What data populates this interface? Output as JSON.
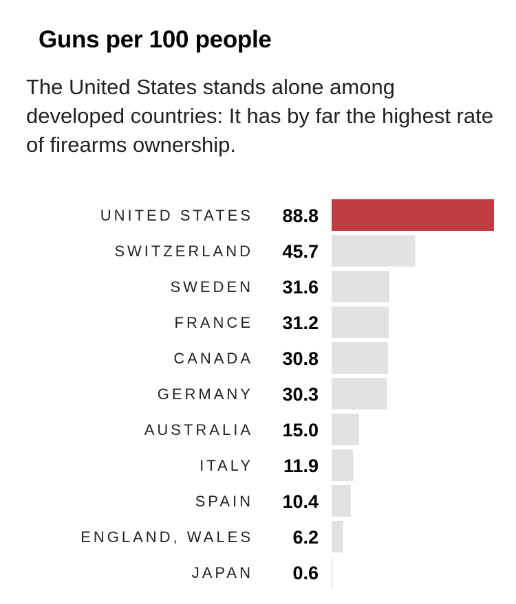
{
  "title": "Guns per 100 people",
  "subtitle": "The United States stands alone among developed countries: It has by far the highest rate of firearms ownership.",
  "colors": {
    "highlight": "#c13b42",
    "bar": "#e2e2e2",
    "text": "#222222",
    "value": "#000000"
  },
  "chart_data": {
    "type": "bar",
    "orientation": "horizontal",
    "title": "Guns per 100 people",
    "xlabel": "",
    "ylabel": "",
    "xlim": [
      0,
      88.8
    ],
    "grid": false,
    "legend": "none",
    "highlight_category": "UNITED STATES",
    "categories": [
      "UNITED STATES",
      "SWITZERLAND",
      "SWEDEN",
      "FRANCE",
      "CANADA",
      "GERMANY",
      "AUSTRALIA",
      "ITALY",
      "SPAIN",
      "ENGLAND, WALES",
      "JAPAN"
    ],
    "values": [
      88.8,
      45.7,
      31.6,
      31.2,
      30.8,
      30.3,
      15.0,
      11.9,
      10.4,
      6.2,
      0.6
    ],
    "value_labels": [
      "88.8",
      "45.7",
      "31.6",
      "31.2",
      "30.8",
      "30.3",
      "15.0",
      "11.9",
      "10.4",
      "6.2",
      "0.6"
    ]
  }
}
